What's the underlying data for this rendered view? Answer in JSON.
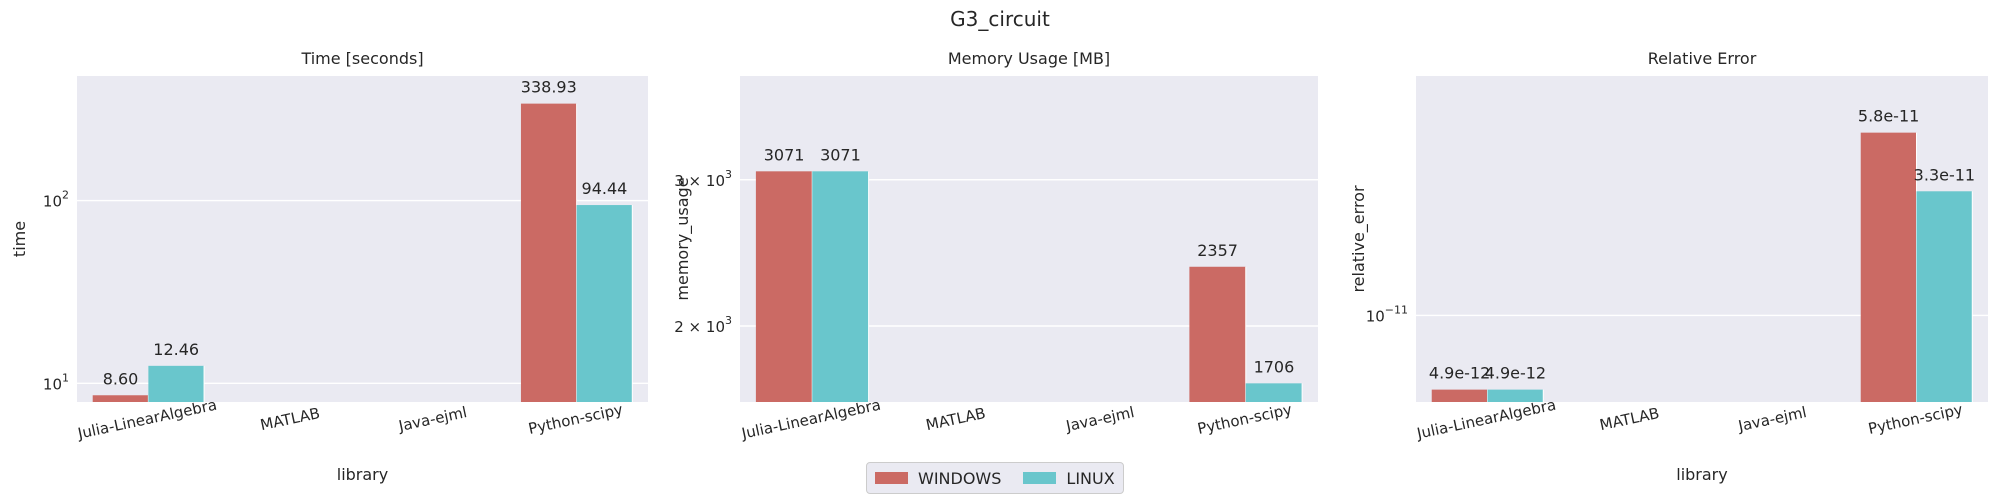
{
  "figure": {
    "title": "G3_circuit"
  },
  "legend": {
    "items": [
      {
        "label": "WINDOWS",
        "color": "#cb6a64"
      },
      {
        "label": "LINUX",
        "color": "#69c6cc"
      }
    ]
  },
  "colors": {
    "panel_bg": "#eaeaf2",
    "grid": "#ffffff",
    "text": "#262626"
  },
  "chart_data": [
    {
      "type": "bar",
      "title": "Time [seconds]",
      "xlabel": "library",
      "ylabel": "time",
      "yscale": "log",
      "ylim": [
        7.9,
        480
      ],
      "yticks": [
        {
          "value": 10,
          "base": "10",
          "exp": "1"
        },
        {
          "value": 100,
          "base": "10",
          "exp": "2"
        }
      ],
      "grid": true,
      "categories": [
        "Julia-LinearAlgebra",
        "MATLAB",
        "Java-ejml",
        "Python-scipy"
      ],
      "series": [
        {
          "name": "WINDOWS",
          "values": [
            8.6,
            null,
            null,
            338.93
          ],
          "labels": [
            "8.60",
            null,
            null,
            "338.93"
          ]
        },
        {
          "name": "LINUX",
          "values": [
            12.46,
            null,
            null,
            94.44
          ],
          "labels": [
            "12.46",
            null,
            null,
            "94.44"
          ]
        }
      ]
    },
    {
      "type": "bar",
      "title": "Memory Usage [MB]",
      "xlabel": "library",
      "ylabel": "memory_usage",
      "yscale": "log",
      "ylim": [
        1620,
        4000
      ],
      "yticks": [
        {
          "value": 2000,
          "base": "2 × 10",
          "exp": "3"
        },
        {
          "value": 3000,
          "base": "3 × 10",
          "exp": "3"
        }
      ],
      "grid": true,
      "categories": [
        "Julia-LinearAlgebra",
        "MATLAB",
        "Java-ejml",
        "Python-scipy"
      ],
      "series": [
        {
          "name": "WINDOWS",
          "values": [
            3071,
            null,
            null,
            2357
          ],
          "labels": [
            "3071",
            null,
            null,
            "2357"
          ]
        },
        {
          "name": "LINUX",
          "values": [
            3071,
            null,
            null,
            1706
          ],
          "labels": [
            "3071",
            null,
            null,
            "1706"
          ]
        }
      ]
    },
    {
      "type": "bar",
      "title": "Relative Error",
      "xlabel": "library",
      "ylabel": "relative_error",
      "yscale": "log",
      "ylim": [
        4.35e-12,
        1e-10
      ],
      "yticks": [
        {
          "value": 1e-11,
          "base": "10",
          "exp": "−11"
        }
      ],
      "grid": true,
      "categories": [
        "Julia-LinearAlgebra",
        "MATLAB",
        "Java-ejml",
        "Python-scipy"
      ],
      "series": [
        {
          "name": "WINDOWS",
          "values": [
            4.9e-12,
            null,
            null,
            5.8e-11
          ],
          "labels": [
            "4.9e-12",
            null,
            null,
            "5.8e-11"
          ]
        },
        {
          "name": "LINUX",
          "values": [
            4.9e-12,
            null,
            null,
            3.3e-11
          ],
          "labels": [
            "4.9e-12",
            null,
            null,
            "3.3e-11"
          ]
        }
      ]
    }
  ]
}
